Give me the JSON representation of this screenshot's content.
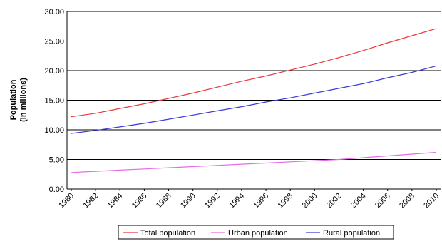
{
  "chart_data": {
    "type": "line",
    "title": "",
    "xlabel": "",
    "ylabel_lines": [
      "Population",
      "(in millions)"
    ],
    "ylim": [
      0,
      30
    ],
    "yticks": [
      "0.00",
      "5.00",
      "10.00",
      "15.00",
      "20.00",
      "25.00",
      "30.00"
    ],
    "xticks": [
      "1980",
      "1982",
      "1984",
      "1986",
      "1988",
      "1990",
      "1992",
      "1994",
      "1996",
      "1998",
      "2000",
      "2002",
      "2004",
      "2006",
      "2008",
      "2010"
    ],
    "grid": "horizontal",
    "legend_position": "bottom",
    "x": [
      1980,
      1982,
      1984,
      1986,
      1988,
      1990,
      1992,
      1994,
      1996,
      1998,
      2000,
      2002,
      2004,
      2006,
      2008,
      2010
    ],
    "series": [
      {
        "name": "Total population",
        "color": "#e8383a",
        "values": [
          12.2,
          12.8,
          13.6,
          14.4,
          15.3,
          16.2,
          17.2,
          18.2,
          19.1,
          20.1,
          21.1,
          22.2,
          23.4,
          24.7,
          25.9,
          27.1
        ]
      },
      {
        "name": "Urban population",
        "color": "#e66be6",
        "values": [
          2.8,
          3.0,
          3.2,
          3.4,
          3.6,
          3.8,
          4.0,
          4.2,
          4.4,
          4.6,
          4.8,
          5.0,
          5.3,
          5.6,
          5.9,
          6.2
        ]
      },
      {
        "name": "Rural population",
        "color": "#3a3ad6",
        "values": [
          9.4,
          9.9,
          10.5,
          11.1,
          11.8,
          12.5,
          13.2,
          13.9,
          14.7,
          15.4,
          16.2,
          17.0,
          17.8,
          18.8,
          19.7,
          20.8
        ]
      }
    ]
  }
}
